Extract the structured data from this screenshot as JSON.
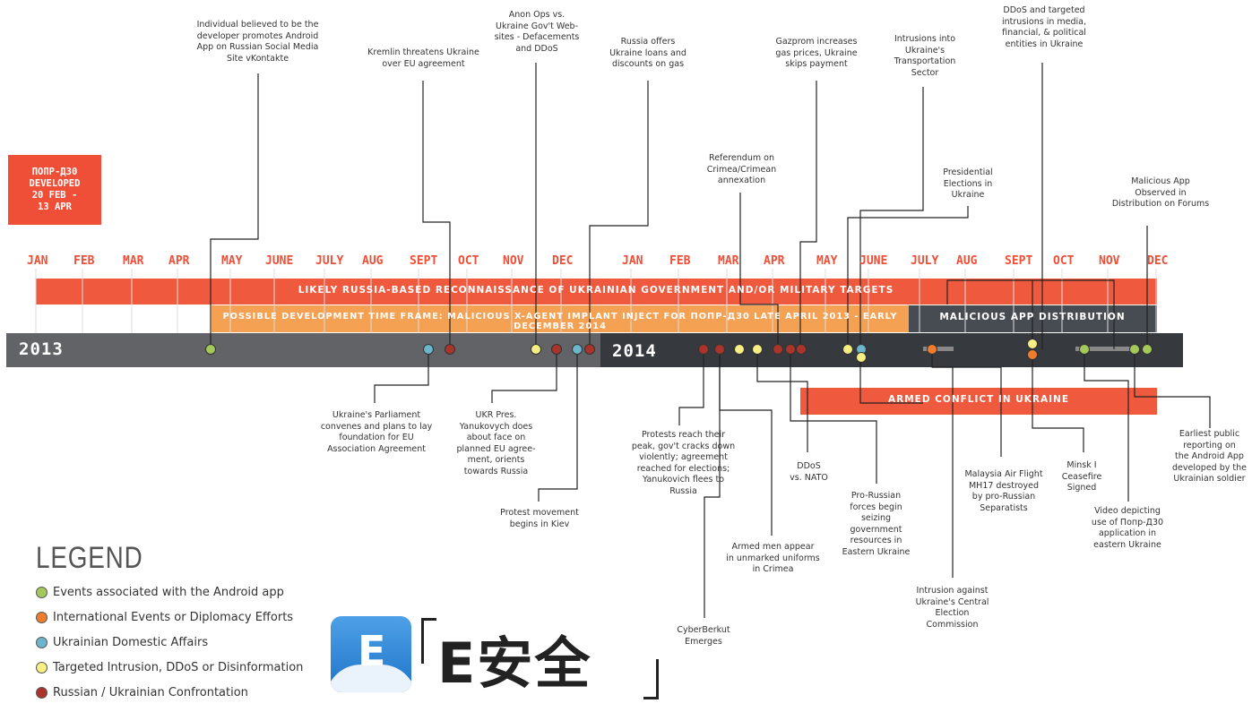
{
  "badge": {
    "lines": [
      "ПОПР-Д30",
      "DEVELOPED",
      "20 FEB -",
      "13 APR"
    ]
  },
  "months": [
    "JAN",
    "FEB",
    "MAR",
    "APR",
    "MAY",
    "JUNE",
    "JULY",
    "AUG",
    "SEPT",
    "OCT",
    "NOV",
    "DEC",
    "JAN",
    "FEB",
    "MAR",
    "APR",
    "MAY",
    "JUNE",
    "JULY",
    "AUG",
    "SEPT",
    "OCT",
    "NOV",
    "DEC"
  ],
  "bands": {
    "recon": "LIKELY RUSSIA-BASED RECONNAISSANCE OF UKRAINIAN GOVERNMENT AND/OR MILITARY TARGETS",
    "dev": "POSSIBLE DEVELOPMENT TIME FRAME: MALICIOUS X-AGENT IMPLANT INJECT FOR ПОПР-Д30 LATE APRIL 2013 - EARLY DECEMBER 2014",
    "app": "MALICIOUS APP DISTRIBUTION",
    "conflict": "ARMED CONFLICT IN UKRAINE"
  },
  "years": {
    "y1": "2013",
    "y2": "2014"
  },
  "colors": {
    "green": "#a5c85a",
    "orange": "#ef7d2d",
    "blue": "#6db5cc",
    "yellow": "#f7ee84",
    "red": "#a8342a",
    "accent": "#ef4e37"
  },
  "events_top": [
    {
      "text": "Individual believed to be  the\ndeveloper promotes Android\nApp on Russian Social Media\nSite vKontakte"
    },
    {
      "text": "Kremlin threatens Ukraine\nover EU agreement"
    },
    {
      "text": "Anon Ops vs.\nUkraine Gov't Web-\nsites - Defacements\nand DDoS"
    },
    {
      "text": "Russia offers\nUkraine loans and\ndiscounts on gas"
    },
    {
      "text": "Referendum on\nCrimea/Crimean\nannexation"
    },
    {
      "text": "Gazprom increases\ngas prices, Ukraine\nskips payment"
    },
    {
      "text": "Intrusions into\nUkraine's\nTransportation\nSector"
    },
    {
      "text": "Presidential\nElections in\nUkraine"
    },
    {
      "text": "DDoS and targeted\nintrusions in media,\nfinancial, & political\nentities  in Ukraine"
    },
    {
      "text": "Malicious App\nObserved in\nDistribution on Forums"
    }
  ],
  "events_bottom": [
    {
      "text": "Ukraine's Parliament\nconvenes and plans to lay\nfoundation for EU\nAssociation Agreement"
    },
    {
      "text": "UKR Pres.\nYanukovych does\nabout face on\nplanned EU agree-\nment, orients\ntowards Russia"
    },
    {
      "text": "Protest movement\nbegins in Kiev"
    },
    {
      "text": "Protests reach their\npeak, gov't cracks down\nviolently; agreement\nreached for elections;\nYanukovich flees to\nRussia"
    },
    {
      "text": "CyberBerkut\nEmerges"
    },
    {
      "text": "Armed men appear\nin unmarked uniforms\nin Crimea"
    },
    {
      "text": "DDoS\nvs. NATO"
    },
    {
      "text": "Pro-Russian\nforces begin\nseizing\ngovernment\nresources in\nEastern Ukraine"
    },
    {
      "text": "Intrusion against\nUkraine's Central\nElection\nCommission"
    },
    {
      "text": "Malaysia Air Flight\nMH17 destroyed\nby pro-Russian\nSeparatists"
    },
    {
      "text": "Minsk I\nCeasefire\nSigned"
    },
    {
      "text": "Video depicting\nuse of Попр-Д30\napplication in\neastern Ukraine"
    },
    {
      "text": "Earliest public\nreporting on\nthe Android App\ndeveloped by the\nUkrainian soldier"
    }
  ],
  "legend": {
    "title": "LEGEND",
    "items": [
      {
        "label": "Events associated with the Android app",
        "color": "#a5c85a"
      },
      {
        "label": "International Events or Diplomacy Efforts",
        "color": "#ef7d2d"
      },
      {
        "label": "Ukrainian Domestic Affairs",
        "color": "#6db5cc"
      },
      {
        "label": "Targeted Intrusion, DDoS or Disinformation",
        "color": "#f7ee84"
      },
      {
        "label": "Russian / Ukrainian Confrontation",
        "color": "#a8342a"
      }
    ]
  },
  "watermark": {
    "icon_letter": "E",
    "text": "E安全"
  }
}
